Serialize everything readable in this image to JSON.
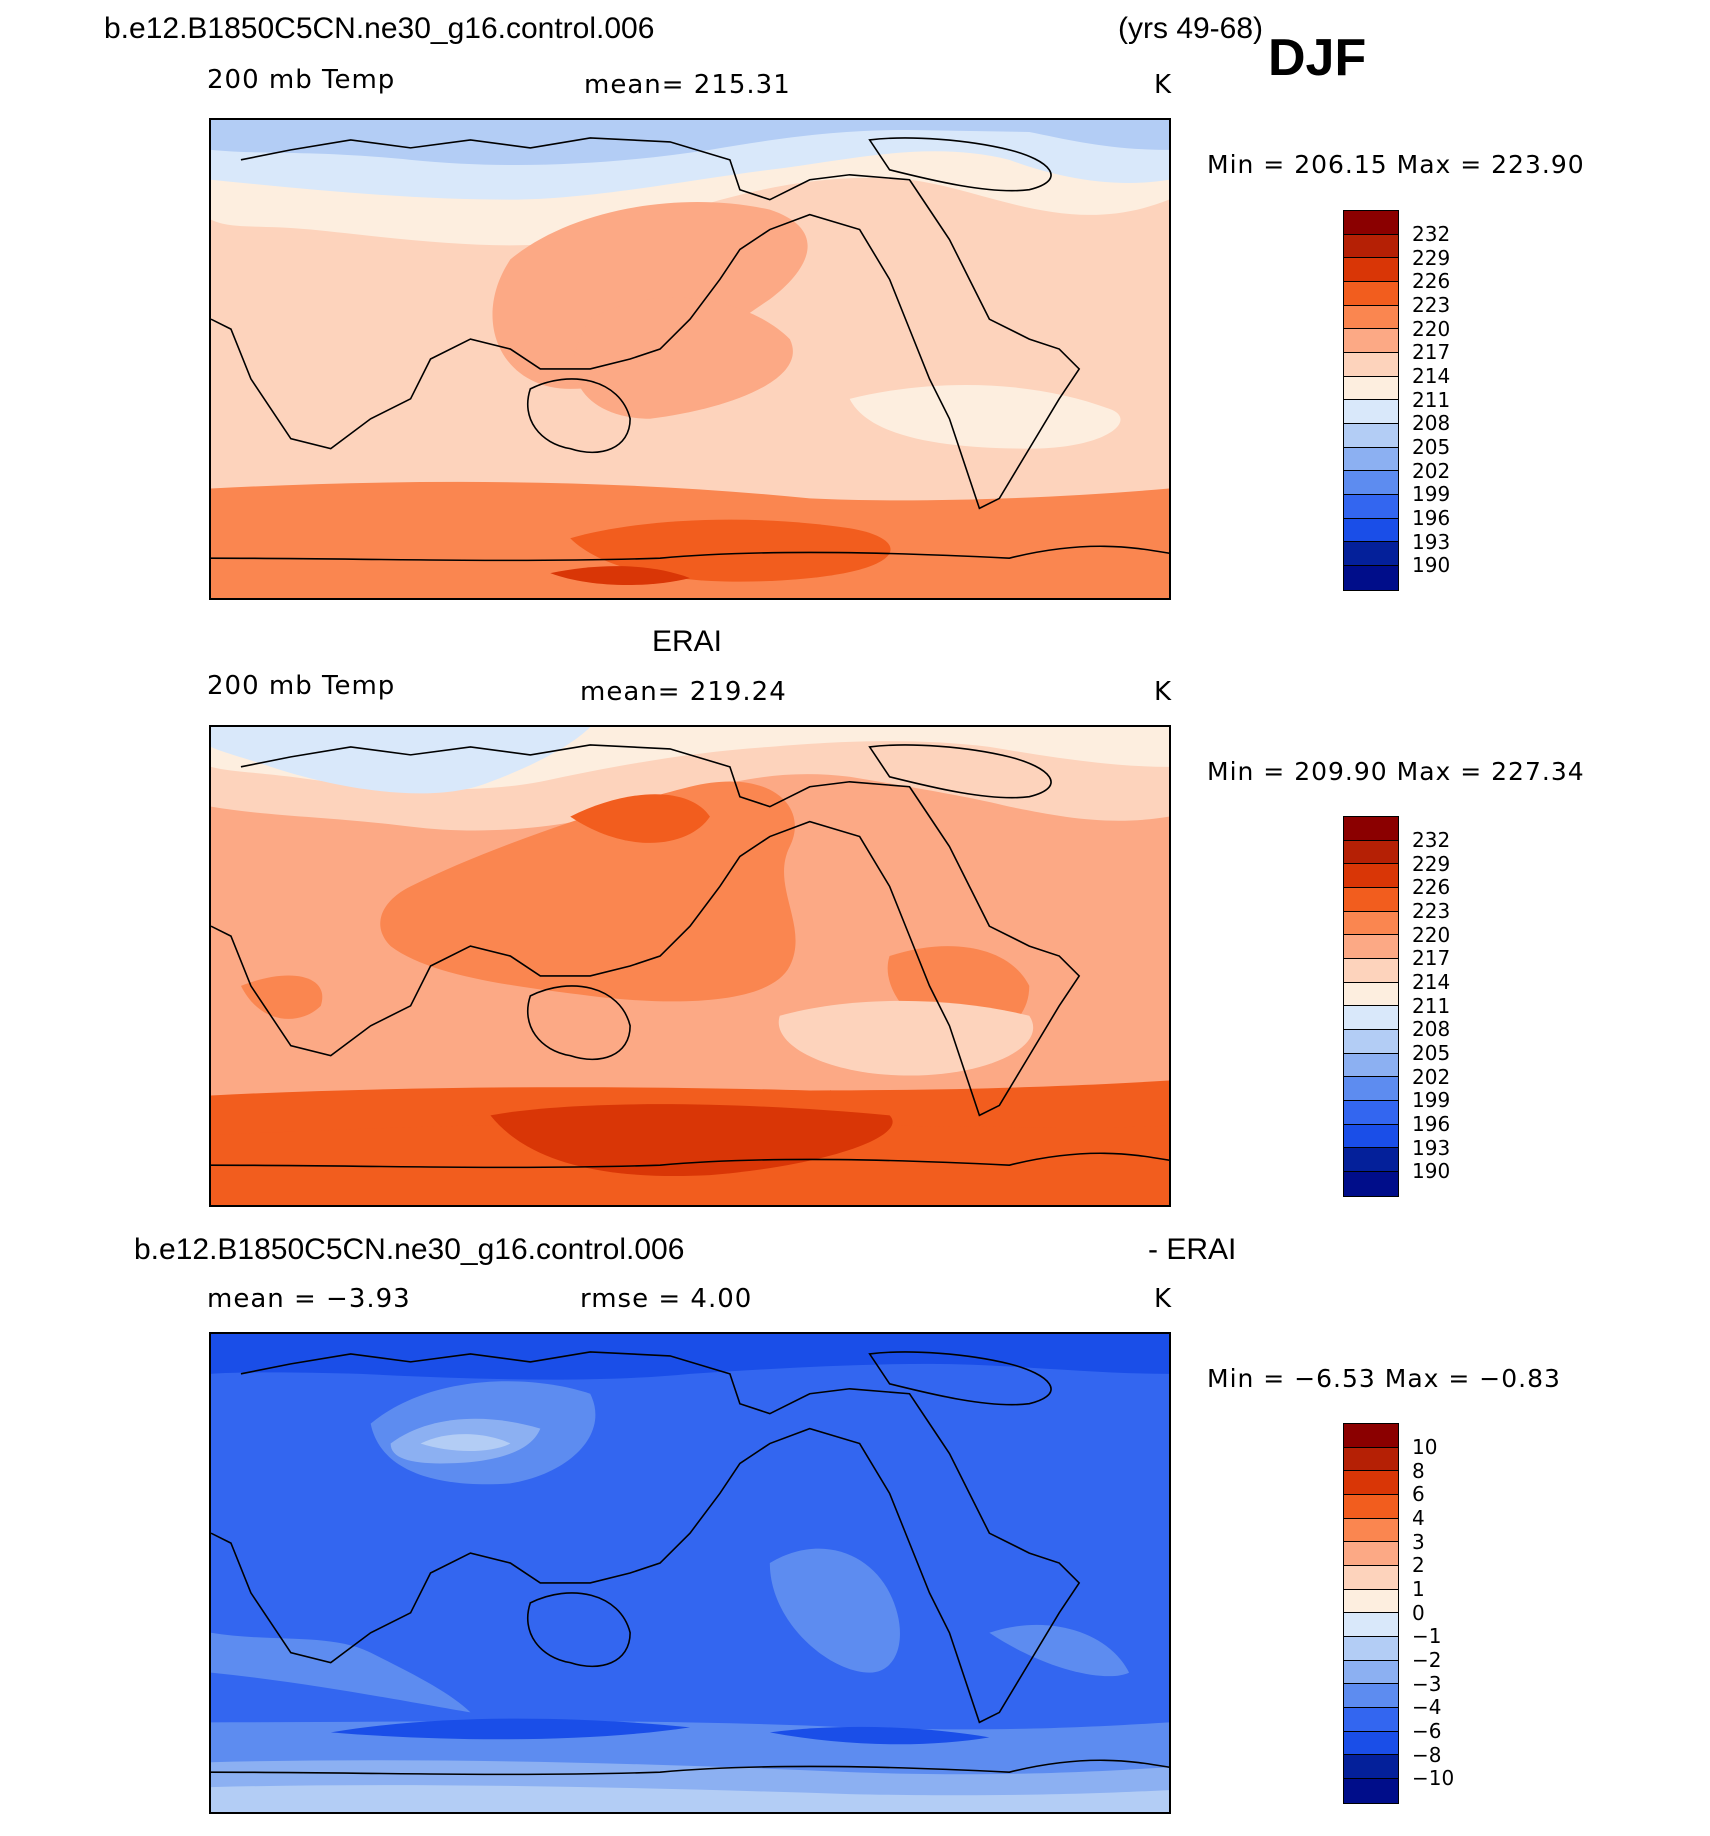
{
  "header": {
    "case_name": "b.e12.B1850C5CN.ne30_g16.control.006",
    "years": "(yrs 49-68)",
    "season": "DJF"
  },
  "panels": [
    {
      "id": "model",
      "title": "",
      "variable": "200 mb Temp",
      "stat_text": "mean=  215.31",
      "units": "K",
      "min_max": "Min  =  206.15  Max  =  223.90",
      "colorbar_labels": [
        "232",
        "229",
        "226",
        "223",
        "220",
        "217",
        "214",
        "211",
        "208",
        "205",
        "202",
        "199",
        "196",
        "193",
        "190"
      ]
    },
    {
      "id": "obs",
      "title": "ERAI",
      "variable": "200 mb Temp",
      "stat_text": "mean=  219.24",
      "units": "K",
      "min_max": "Min  =  209.90  Max  =  227.34",
      "colorbar_labels": [
        "232",
        "229",
        "226",
        "223",
        "220",
        "217",
        "214",
        "211",
        "208",
        "205",
        "202",
        "199",
        "196",
        "193",
        "190"
      ]
    },
    {
      "id": "diff",
      "title_left": "b.e12.B1850C5CN.ne30_g16.control.006",
      "title_right": "- ERAI",
      "variable": "mean  =    −3.93",
      "stat_text": "rmse  =     4.00",
      "units": "K",
      "min_max": "Min  =    −6.53  Max  =    −0.83",
      "colorbar_labels": [
        "10",
        "8",
        "6",
        "4",
        "3",
        "2",
        "1",
        "0",
        "−1",
        "−2",
        "−3",
        "−4",
        "−6",
        "−8",
        "−10"
      ]
    }
  ],
  "colors": {
    "palette": [
      "#8b0000",
      "#b52005",
      "#d93606",
      "#f25d1e",
      "#fa8650",
      "#fca985",
      "#fdd3bc",
      "#fdeedf",
      "#d9e8fa",
      "#b3cdf5",
      "#8cb0f2",
      "#5d8cf0",
      "#3366f0",
      "#1a4ee8",
      "#0831c7",
      "#04209a",
      "#000d8a"
    ]
  }
}
